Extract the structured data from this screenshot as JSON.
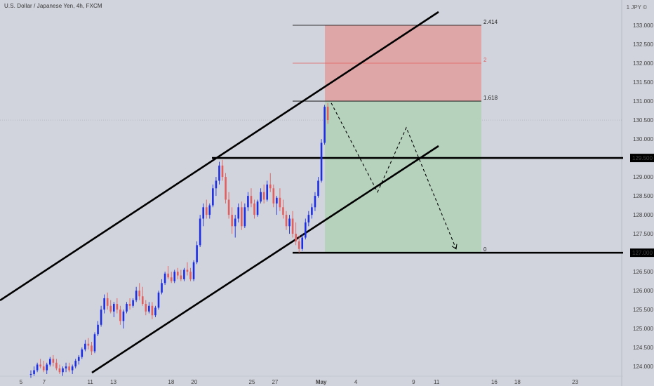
{
  "header": {
    "title": "U.S. Dollar / Japanese Yen, 4h, FXCM",
    "currency_label": "1 JPY ©"
  },
  "colors": {
    "background": "#d1d4dc",
    "bull": "#1c2ee0",
    "bear": "#e35e5e",
    "risk_zone": "#dfa6a8",
    "reward_zone": "#b6d2bd",
    "lines": "#000000",
    "fib_mid": "#e06060"
  },
  "chart_data": {
    "type": "candlestick",
    "symbol": "U.S. Dollar / Japanese Yen",
    "interval": "4h",
    "source": "FXCM",
    "y_axis": {
      "ticks": [
        "124.000",
        "124.500",
        "125.000",
        "125.500",
        "126.000",
        "126.500",
        "127.000",
        "127.500",
        "128.000",
        "128.500",
        "129.000",
        "129.500",
        "130.000",
        "130.500",
        "131.000",
        "131.500",
        "132.000",
        "132.500",
        "133.000"
      ],
      "range": [
        123.67,
        133.5
      ]
    },
    "x_axis": {
      "ticks": [
        "5",
        "7",
        "11",
        "13",
        "18",
        "20",
        "25",
        "27",
        "May",
        "4",
        "9",
        "11",
        "16",
        "18",
        "23"
      ],
      "tick_day_index": [
        0,
        2,
        6,
        8,
        13,
        15,
        20,
        22,
        26,
        29,
        34,
        36,
        41,
        43,
        48
      ]
    },
    "price_labels": [
      "129.500",
      "127.000"
    ],
    "levels": [
      129.5,
      127.0
    ],
    "fib_levels": [
      {
        "label": "2.414",
        "value": 133.0
      },
      {
        "label": "2",
        "value": 132.0
      },
      {
        "label": "1.618",
        "value": 131.0
      },
      {
        "label": "0",
        "value": 127.0
      }
    ],
    "candles_ohlc": [
      [
        123.8,
        123.9,
        123.7,
        123.8
      ],
      [
        123.8,
        124.0,
        123.75,
        123.9
      ],
      [
        123.9,
        124.1,
        123.85,
        124.05
      ],
      [
        124.05,
        124.2,
        123.95,
        124.0
      ],
      [
        124.0,
        124.15,
        123.85,
        123.9
      ],
      [
        123.9,
        124.1,
        123.8,
        124.05
      ],
      [
        124.05,
        124.25,
        124.0,
        124.2
      ],
      [
        124.2,
        124.3,
        124.0,
        124.1
      ],
      [
        124.1,
        124.2,
        123.9,
        123.95
      ],
      [
        123.95,
        124.05,
        123.8,
        123.85
      ],
      [
        123.85,
        124.0,
        123.75,
        123.95
      ],
      [
        123.95,
        124.1,
        123.85,
        124.0
      ],
      [
        124.0,
        124.1,
        123.85,
        123.9
      ],
      [
        123.9,
        124.05,
        123.8,
        124.0
      ],
      [
        124.0,
        124.2,
        123.95,
        124.15
      ],
      [
        124.15,
        124.3,
        124.05,
        124.25
      ],
      [
        124.25,
        124.5,
        124.2,
        124.45
      ],
      [
        124.45,
        124.7,
        124.4,
        124.6
      ],
      [
        124.6,
        124.75,
        124.45,
        124.55
      ],
      [
        124.55,
        124.65,
        124.3,
        124.4
      ],
      [
        124.4,
        124.9,
        124.35,
        124.85
      ],
      [
        124.85,
        125.2,
        124.8,
        125.1
      ],
      [
        125.1,
        125.6,
        125.05,
        125.5
      ],
      [
        125.5,
        125.9,
        125.4,
        125.8
      ],
      [
        125.8,
        125.95,
        125.5,
        125.6
      ],
      [
        125.6,
        125.75,
        125.4,
        125.45
      ],
      [
        125.45,
        125.7,
        125.3,
        125.65
      ],
      [
        125.65,
        125.8,
        125.4,
        125.5
      ],
      [
        125.5,
        125.6,
        125.1,
        125.2
      ],
      [
        125.2,
        125.5,
        125.0,
        125.45
      ],
      [
        125.45,
        125.7,
        125.4,
        125.65
      ],
      [
        125.65,
        125.8,
        125.5,
        125.6
      ],
      [
        125.6,
        125.8,
        125.55,
        125.75
      ],
      [
        125.75,
        126.1,
        125.7,
        126.0
      ],
      [
        126.0,
        126.2,
        125.75,
        125.85
      ],
      [
        125.85,
        126.1,
        125.6,
        125.65
      ],
      [
        125.65,
        125.75,
        125.35,
        125.45
      ],
      [
        125.45,
        125.7,
        125.4,
        125.6
      ],
      [
        125.6,
        125.7,
        125.25,
        125.35
      ],
      [
        125.35,
        125.6,
        125.3,
        125.55
      ],
      [
        125.55,
        126.0,
        125.5,
        125.95
      ],
      [
        125.95,
        126.3,
        125.9,
        126.2
      ],
      [
        126.2,
        126.5,
        126.15,
        126.45
      ],
      [
        126.45,
        126.65,
        126.3,
        126.35
      ],
      [
        126.35,
        126.5,
        126.2,
        126.25
      ],
      [
        126.25,
        126.55,
        126.2,
        126.5
      ],
      [
        126.5,
        126.6,
        126.3,
        126.4
      ],
      [
        126.4,
        126.55,
        126.25,
        126.3
      ],
      [
        126.3,
        126.6,
        126.25,
        126.55
      ],
      [
        126.55,
        126.75,
        126.4,
        126.5
      ],
      [
        126.5,
        126.6,
        126.25,
        126.3
      ],
      [
        126.3,
        126.8,
        126.25,
        126.75
      ],
      [
        126.75,
        127.3,
        126.7,
        127.2
      ],
      [
        127.2,
        128.0,
        127.15,
        127.9
      ],
      [
        127.9,
        128.3,
        127.7,
        128.2
      ],
      [
        128.2,
        128.4,
        127.9,
        128.0
      ],
      [
        128.0,
        128.3,
        127.9,
        128.25
      ],
      [
        128.25,
        128.8,
        128.2,
        128.7
      ],
      [
        128.7,
        129.0,
        128.5,
        128.9
      ],
      [
        128.9,
        129.4,
        128.8,
        129.3
      ],
      [
        129.3,
        129.45,
        128.9,
        129.0
      ],
      [
        129.0,
        129.1,
        128.3,
        128.4
      ],
      [
        128.4,
        128.6,
        127.9,
        128.0
      ],
      [
        128.0,
        128.2,
        127.5,
        127.7
      ],
      [
        127.7,
        128.0,
        127.4,
        127.9
      ],
      [
        127.9,
        128.3,
        127.8,
        128.2
      ],
      [
        128.2,
        128.35,
        127.6,
        127.7
      ],
      [
        127.7,
        128.3,
        127.65,
        128.2
      ],
      [
        128.2,
        128.6,
        128.1,
        128.5
      ],
      [
        128.5,
        128.7,
        128.2,
        128.3
      ],
      [
        128.3,
        128.4,
        127.9,
        128.0
      ],
      [
        128.0,
        128.4,
        127.95,
        128.35
      ],
      [
        128.35,
        128.7,
        128.3,
        128.6
      ],
      [
        128.6,
        128.8,
        128.3,
        128.4
      ],
      [
        128.4,
        128.9,
        128.35,
        128.8
      ],
      [
        128.8,
        129.1,
        128.6,
        128.7
      ],
      [
        128.7,
        128.8,
        128.2,
        128.3
      ],
      [
        128.3,
        128.5,
        128.0,
        128.45
      ],
      [
        128.45,
        128.7,
        128.1,
        128.2
      ],
      [
        128.2,
        128.4,
        127.9,
        128.0
      ],
      [
        128.0,
        128.1,
        127.6,
        127.7
      ],
      [
        127.7,
        128.0,
        127.5,
        127.9
      ],
      [
        127.9,
        128.1,
        127.4,
        127.5
      ],
      [
        127.5,
        127.8,
        127.2,
        127.3
      ],
      [
        127.3,
        127.45,
        127.0,
        127.1
      ],
      [
        127.1,
        127.5,
        127.05,
        127.4
      ],
      [
        127.4,
        127.9,
        127.35,
        127.8
      ],
      [
        127.8,
        128.1,
        127.7,
        128.0
      ],
      [
        128.0,
        128.3,
        127.9,
        128.2
      ],
      [
        128.2,
        128.6,
        128.1,
        128.5
      ],
      [
        128.5,
        129.0,
        128.45,
        128.9
      ],
      [
        128.9,
        130.0,
        128.85,
        129.9
      ],
      [
        129.9,
        130.9,
        129.85,
        130.85
      ],
      [
        130.85,
        130.95,
        130.4,
        130.5
      ]
    ],
    "forecast_path": [
      130.95,
      128.6,
      130.3,
      127.1
    ]
  }
}
